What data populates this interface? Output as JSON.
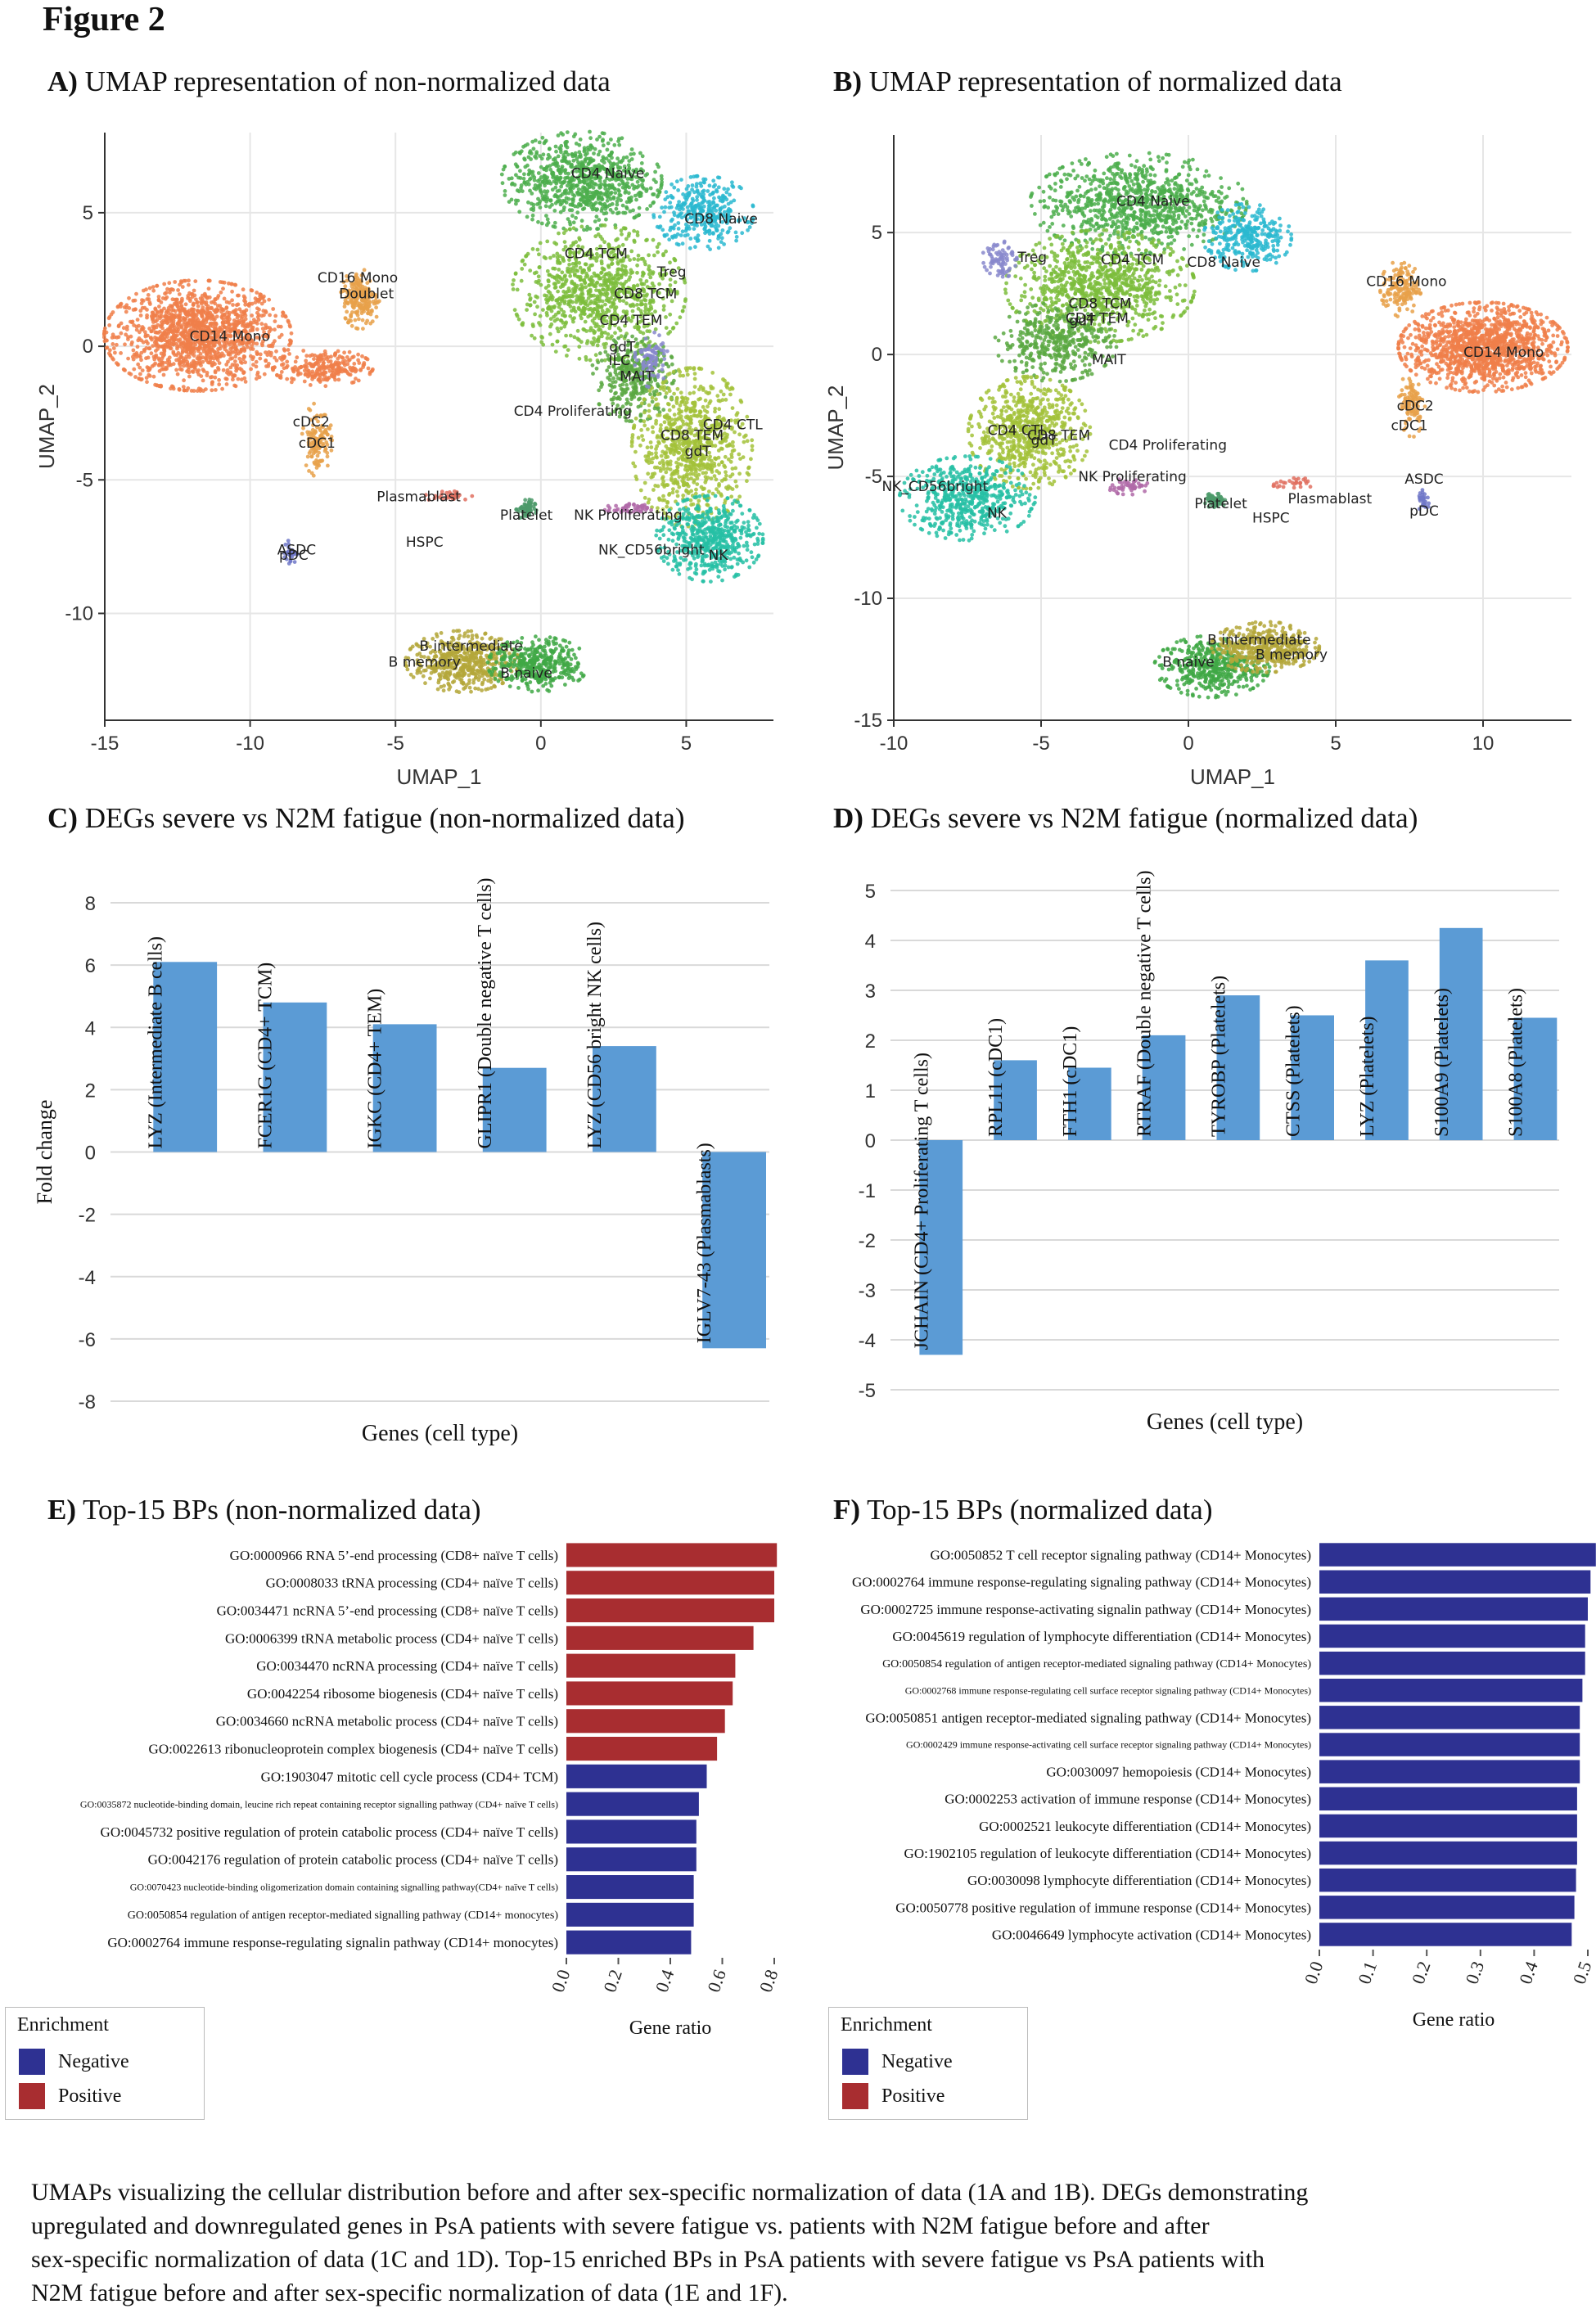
{
  "figure_title": "Figure 2",
  "colors": {
    "bar": "#5b9bd5",
    "negative": "#2e3192",
    "positive": "#a82d30",
    "grid": "#e6e6e6"
  },
  "caption": [
    "UMAPs visualizing the cellular distribution before and after sex-specific normalization of data (1A and 1B).  DEGs demonstrating",
    "upregulated and downregulated genes in PsA patients with severe fatigue vs. patients with N2M fatigue before and after",
    "sex-specific normalization of data (1C and 1D). Top-15 enriched BPs in PsA patients with severe fatigue vs PsA patients with",
    "N2M fatigue before and after sex-specific normalization of data (1E and 1F)."
  ],
  "chart_data": [
    {
      "id": "A",
      "type": "scatter",
      "panel_letter": "A)",
      "title": "UMAP representation of non-normalized data",
      "xlabel": "UMAP_1",
      "ylabel": "UMAP_2",
      "xlim": [
        -15,
        8
      ],
      "ylim": [
        -14,
        8
      ],
      "xticks": [
        -15,
        -10,
        -5,
        0,
        5
      ],
      "yticks": [
        -10,
        -5,
        0,
        5
      ],
      "clusters": [
        {
          "x": -11.8,
          "y": 0.4,
          "rx": 2.8,
          "ry": 1.8,
          "color": "#f07f4a",
          "count": 1400
        },
        {
          "x": -7.5,
          "y": -0.8,
          "rx": 1.5,
          "ry": 0.6,
          "color": "#f07f4a",
          "count": 250
        },
        {
          "x": -6.2,
          "y": 1.8,
          "rx": 0.6,
          "ry": 1.0,
          "color": "#e8a14a",
          "count": 200
        },
        {
          "x": -7.7,
          "y": -3.5,
          "rx": 0.45,
          "ry": 1.2,
          "color": "#e8a14a",
          "count": 120
        },
        {
          "x": 1.4,
          "y": 6.2,
          "rx": 2.4,
          "ry": 1.6,
          "color": "#4cae4c",
          "count": 800
        },
        {
          "x": 5.6,
          "y": 5.0,
          "rx": 1.5,
          "ry": 1.2,
          "color": "#2ab8d0",
          "count": 350
        },
        {
          "x": 2.0,
          "y": 2.0,
          "rx": 2.6,
          "ry": 2.2,
          "color": "#7cbd3c",
          "count": 900
        },
        {
          "x": 3.2,
          "y": -1.2,
          "rx": 1.3,
          "ry": 1.4,
          "color": "#5aa842",
          "count": 350
        },
        {
          "x": 5.2,
          "y": -3.8,
          "rx": 1.8,
          "ry": 2.6,
          "color": "#a3c23a",
          "count": 800
        },
        {
          "x": 5.8,
          "y": -7.2,
          "rx": 1.6,
          "ry": 1.4,
          "color": "#26bfa5",
          "count": 550
        },
        {
          "x": 3.8,
          "y": -0.5,
          "rx": 0.5,
          "ry": 0.9,
          "color": "#8888cc",
          "count": 80
        },
        {
          "x": -2.7,
          "y": -11.8,
          "rx": 1.7,
          "ry": 1.0,
          "color": "#b4a73a",
          "count": 500
        },
        {
          "x": -0.1,
          "y": -11.9,
          "rx": 1.5,
          "ry": 0.9,
          "color": "#3fa845",
          "count": 400
        },
        {
          "x": -0.5,
          "y": -6.1,
          "rx": 0.3,
          "ry": 0.35,
          "color": "#4c9a6a",
          "count": 60
        },
        {
          "x": 3.0,
          "y": -6.1,
          "rx": 0.7,
          "ry": 0.2,
          "color": "#b06aa8",
          "count": 50
        },
        {
          "x": -3.2,
          "y": -5.6,
          "rx": 0.8,
          "ry": 0.2,
          "color": "#e07060",
          "count": 30
        },
        {
          "x": -8.6,
          "y": -7.7,
          "rx": 0.2,
          "ry": 0.4,
          "color": "#7078c8",
          "count": 30
        }
      ],
      "labels": [
        {
          "text": "CD4 Naive",
          "x": 2.3,
          "y": 6.3
        },
        {
          "text": "CD8 Naive",
          "x": 6.2,
          "y": 4.6
        },
        {
          "text": "CD4 TCM",
          "x": 1.9,
          "y": 3.3
        },
        {
          "text": "Treg",
          "x": 4.5,
          "y": 2.6
        },
        {
          "text": "CD8 TCM",
          "x": 3.6,
          "y": 1.8
        },
        {
          "text": "CD4 TEM",
          "x": 3.1,
          "y": 0.8
        },
        {
          "text": "gdT",
          "x": 2.8,
          "y": -0.2
        },
        {
          "text": "ILC",
          "x": 2.7,
          "y": -0.7
        },
        {
          "text": "MAIT",
          "x": 3.3,
          "y": -1.3
        },
        {
          "text": "CD4 Proliferating",
          "x": 1.1,
          "y": -2.6
        },
        {
          "text": "CD4 CTL",
          "x": 6.6,
          "y": -3.1
        },
        {
          "text": "CD8 TEM",
          "x": 5.2,
          "y": -3.5
        },
        {
          "text": "gdT",
          "x": 5.4,
          "y": -4.1
        },
        {
          "text": "CD16 Mono",
          "x": -6.3,
          "y": 2.4
        },
        {
          "text": "Doublet",
          "x": -6.0,
          "y": 1.8
        },
        {
          "text": "CD14 Mono",
          "x": -10.7,
          "y": 0.2
        },
        {
          "text": "cDC2",
          "x": -7.9,
          "y": -3.0
        },
        {
          "text": "cDC1",
          "x": -7.7,
          "y": -3.8
        },
        {
          "text": "Plasmablast",
          "x": -4.2,
          "y": -5.8
        },
        {
          "text": "Platelet",
          "x": -0.5,
          "y": -6.5
        },
        {
          "text": "NK Proliferating",
          "x": 3.0,
          "y": -6.5
        },
        {
          "text": "HSPC",
          "x": -4.0,
          "y": -7.5
        },
        {
          "text": "ASDC",
          "x": -8.4,
          "y": -7.8
        },
        {
          "text": "pDC",
          "x": -8.5,
          "y": -8.0
        },
        {
          "text": "NK_CD56bright",
          "x": 3.8,
          "y": -7.8
        },
        {
          "text": "NK",
          "x": 6.1,
          "y": -8.0
        },
        {
          "text": "B intermediate",
          "x": -2.4,
          "y": -11.4
        },
        {
          "text": "B memory",
          "x": -4.0,
          "y": -12.0
        },
        {
          "text": "B naive",
          "x": -0.5,
          "y": -12.4
        }
      ]
    },
    {
      "id": "B",
      "type": "scatter",
      "panel_letter": "B)",
      "title": "UMAP representation of normalized data",
      "xlabel": "UMAP_1",
      "ylabel": "UMAP_2",
      "xlim": [
        -10,
        13
      ],
      "ylim": [
        -15,
        9
      ],
      "xticks": [
        -10,
        -5,
        0,
        5,
        10
      ],
      "yticks": [
        -15,
        -10,
        -5,
        0,
        5
      ],
      "clusters": [
        {
          "x": -1.7,
          "y": 6.2,
          "rx": 3.2,
          "ry": 1.8,
          "color": "#4cae4c",
          "count": 900
        },
        {
          "x": 2.0,
          "y": 4.8,
          "rx": 1.3,
          "ry": 1.2,
          "color": "#2ab8d0",
          "count": 300
        },
        {
          "x": -3.0,
          "y": 2.8,
          "rx": 2.8,
          "ry": 2.0,
          "color": "#7cbd3c",
          "count": 900
        },
        {
          "x": -4.5,
          "y": 0.5,
          "rx": 1.8,
          "ry": 1.4,
          "color": "#5aa842",
          "count": 400
        },
        {
          "x": -5.4,
          "y": -3.2,
          "rx": 1.8,
          "ry": 2.0,
          "color": "#a3c23a",
          "count": 700
        },
        {
          "x": -7.5,
          "y": -5.9,
          "rx": 2.0,
          "ry": 1.5,
          "color": "#26bfa5",
          "count": 550
        },
        {
          "x": -6.4,
          "y": 4.0,
          "rx": 0.5,
          "ry": 0.8,
          "color": "#8888cc",
          "count": 80
        },
        {
          "x": 10.0,
          "y": 0.3,
          "rx": 2.5,
          "ry": 1.6,
          "color": "#f07f4a",
          "count": 1300
        },
        {
          "x": 7.2,
          "y": 2.7,
          "rx": 0.6,
          "ry": 1.0,
          "color": "#e8a14a",
          "count": 150
        },
        {
          "x": 7.6,
          "y": -2.0,
          "rx": 0.4,
          "ry": 1.2,
          "color": "#e8a14a",
          "count": 100
        },
        {
          "x": 0.8,
          "y": -12.8,
          "rx": 1.7,
          "ry": 1.1,
          "color": "#3fa845",
          "count": 450
        },
        {
          "x": 2.6,
          "y": -12.0,
          "rx": 1.6,
          "ry": 0.9,
          "color": "#b4a73a",
          "count": 450
        },
        {
          "x": 0.9,
          "y": -6.0,
          "rx": 0.3,
          "ry": 0.3,
          "color": "#4c9a6a",
          "count": 60
        },
        {
          "x": -2.0,
          "y": -5.4,
          "rx": 0.7,
          "ry": 0.3,
          "color": "#b06aa8",
          "count": 50
        },
        {
          "x": 3.7,
          "y": -5.3,
          "rx": 0.8,
          "ry": 0.2,
          "color": "#e07060",
          "count": 30
        },
        {
          "x": 8.0,
          "y": -6.0,
          "rx": 0.2,
          "ry": 0.4,
          "color": "#7078c8",
          "count": 30
        }
      ],
      "labels": [
        {
          "text": "CD4 Naive",
          "x": -1.2,
          "y": 6.1
        },
        {
          "text": "Treg",
          "x": -5.3,
          "y": 3.8
        },
        {
          "text": "CD4 TCM",
          "x": -1.9,
          "y": 3.7
        },
        {
          "text": "CD8 Naive",
          "x": 1.2,
          "y": 3.6
        },
        {
          "text": "CD8 TCM",
          "x": -3.0,
          "y": 1.9
        },
        {
          "text": "CD4 TEM",
          "x": -3.1,
          "y": 1.3
        },
        {
          "text": "gdT",
          "x": -3.6,
          "y": 1.2
        },
        {
          "text": "MAIT",
          "x": -2.7,
          "y": -0.4
        },
        {
          "text": "CD4 CTL",
          "x": -5.8,
          "y": -3.3
        },
        {
          "text": "CD8 TEM",
          "x": -4.4,
          "y": -3.5
        },
        {
          "text": "gdT",
          "x": -4.9,
          "y": -3.7
        },
        {
          "text": "CD4 Proliferating",
          "x": -0.7,
          "y": -3.9
        },
        {
          "text": "NK Proliferating",
          "x": -1.9,
          "y": -5.2
        },
        {
          "text": "NK_CD56bright",
          "x": -8.6,
          "y": -5.6
        },
        {
          "text": "NK",
          "x": -6.5,
          "y": -6.7
        },
        {
          "text": "Platelet",
          "x": 1.1,
          "y": -6.3
        },
        {
          "text": "HSPC",
          "x": 2.8,
          "y": -6.9
        },
        {
          "text": "Plasmablast",
          "x": 4.8,
          "y": -6.1
        },
        {
          "text": "CD16 Mono",
          "x": 7.4,
          "y": 2.8
        },
        {
          "text": "CD14 Mono",
          "x": 10.7,
          "y": -0.1
        },
        {
          "text": "cDC2",
          "x": 7.7,
          "y": -2.3
        },
        {
          "text": "cDC1",
          "x": 7.5,
          "y": -3.1
        },
        {
          "text": "ASDC",
          "x": 8.0,
          "y": -5.3
        },
        {
          "text": "pDC",
          "x": 8.0,
          "y": -6.6
        },
        {
          "text": "B intermediate",
          "x": 2.4,
          "y": -11.9
        },
        {
          "text": "B memory",
          "x": 3.5,
          "y": -12.5
        },
        {
          "text": "B naive",
          "x": 0.0,
          "y": -12.8
        }
      ]
    },
    {
      "id": "C",
      "type": "bar",
      "panel_letter": "C)",
      "title": "DEGs severe vs N2M fatigue (non-normalized data)",
      "xlabel": "Genes (cell type)",
      "ylabel": "Fold change",
      "ylim": [
        -8,
        8
      ],
      "yticks": [
        8,
        6,
        4,
        2,
        0,
        -2,
        -4,
        -6,
        -8
      ],
      "categories": [
        "LYZ (Intermediate B cells)",
        "FCER1G (CD4+ TCM)",
        "IGKC (CD4+ TEM)",
        "GLIPR1 (Double negative T cells)",
        "LYZ (CD56 bright NK cells)",
        "IGLV7-43 (Plasmablasts)"
      ],
      "values": [
        6.1,
        4.8,
        4.1,
        2.7,
        3.4,
        -6.3
      ]
    },
    {
      "id": "D",
      "type": "bar",
      "panel_letter": "D)",
      "title": "DEGs severe vs N2M fatigue (normalized data)",
      "xlabel": "Genes (cell type)",
      "ylabel": "",
      "ylim": [
        -5,
        5
      ],
      "yticks": [
        5,
        4,
        3,
        2,
        1,
        0,
        -1,
        -2,
        -3,
        -4,
        -5
      ],
      "categories": [
        "JCHAIN (CD4+ Proliferating T cells)",
        "RPL11 (cDC1)",
        "FTH1 (cDC1)",
        "RTRAF (Double negative T cells)",
        "TYROBP (Platelets)",
        "CTSS (Platelets)",
        "LYZ (Platelets)",
        "S100A9 (Platelets)",
        "S100A8 (Platelets)"
      ],
      "values": [
        -4.3,
        1.6,
        1.45,
        2.1,
        2.9,
        2.5,
        3.6,
        4.25,
        2.45
      ]
    },
    {
      "id": "E",
      "type": "bar",
      "orientation": "horizontal",
      "panel_letter": "E)",
      "title": "Top-15 BPs (non-normalized data)",
      "xlabel": "Gene ratio",
      "xlim": [
        0,
        0.8
      ],
      "xticks": [
        "0.0",
        "0.2",
        "0.4",
        "0.6",
        "0.8"
      ],
      "legend_title": "Enrichment",
      "legend": [
        "Negative",
        "Positive"
      ],
      "categories": [
        "GO:0000966 RNA 5’-end processing (CD8+ naïve T cells)",
        "GO:0008033 tRNA processing (CD4+ naïve T cells)",
        "GO:0034471 ncRNA 5’-end processing (CD8+ naïve T cells)",
        "GO:0006399 tRNA metabolic process (CD4+ naïve T cells)",
        "GO:0034470 ncRNA processing (CD4+ naïve T cells)",
        "GO:0042254 ribosome biogenesis (CD4+ naïve T cells)",
        "GO:0034660 ncRNA metabolic process (CD4+ naïve T cells)",
        "GO:0022613 ribonucleoprotein complex biogenesis (CD4+ naïve T cells)",
        "GO:1903047 mitotic cell cycle process (CD4+ TCM)",
        "GO:0035872 nucleotide-binding domain, leucine rich repeat containing receptor signalling pathway (CD4+ naïve T cells)",
        "GO:0045732 positive regulation of protein catabolic process (CD4+ naïve T cells)",
        "GO:0042176 regulation of protein catabolic process (CD4+ naïve T cells)",
        "GO:0070423 nucleotide-binding oligomerization domain containing signalling pathway(CD4+ naïve T cells)",
        "GO:0050854 regulation of antigen receptor-mediated signalling pathway (CD14+ monocytes)",
        "GO:0002764 immune response-regulating signalin pathway (CD14+ monocytes)"
      ],
      "values": [
        0.81,
        0.8,
        0.8,
        0.72,
        0.65,
        0.64,
        0.61,
        0.58,
        0.54,
        0.51,
        0.5,
        0.5,
        0.49,
        0.49,
        0.48
      ],
      "enrichment": [
        "Positive",
        "Positive",
        "Positive",
        "Positive",
        "Positive",
        "Positive",
        "Positive",
        "Positive",
        "Negative",
        "Negative",
        "Negative",
        "Negative",
        "Negative",
        "Negative",
        "Negative"
      ]
    },
    {
      "id": "F",
      "type": "bar",
      "orientation": "horizontal",
      "panel_letter": "F)",
      "title": "Top-15 BPs (normalized data)",
      "xlabel": "Gene ratio",
      "xlim": [
        0,
        0.5
      ],
      "xticks": [
        "0.0",
        "0.1",
        "0.2",
        "0.3",
        "0.4",
        "0.5"
      ],
      "legend_title": "Enrichment",
      "legend": [
        "Negative",
        "Positive"
      ],
      "categories": [
        "GO:0050852 T cell receptor signaling pathway (CD14+ Monocytes)",
        "GO:0002764 immune response-regulating signaling pathway (CD14+ Monocytes)",
        "GO:0002725 immune response-activating signalin pathway (CD14+ Monocytes)",
        "GO:0045619 regulation of lymphocyte differentiation (CD14+ Monocytes)",
        "GO:0050854 regulation of antigen receptor-mediated signaling pathway (CD14+ Monocytes)",
        "GO:0002768 immune response-regulating cell surface receptor signaling pathway (CD14+ Monocytes)",
        "GO:0050851 antigen receptor-mediated signaling pathway (CD14+ Monocytes)",
        "GO:0002429 immune response-activating cell surface receptor signaling pathway (CD14+ Monocytes)",
        "GO:0030097 hemopoiesis (CD14+ Monocytes)",
        "GO:0002253 activation of immune response (CD14+ Monocytes)",
        "GO:0002521 leukocyte differentiation (CD14+ Monocytes)",
        "GO:1902105 regulation of leukocyte differentiation (CD14+ Monocytes)",
        "GO:0030098 lymphocyte differentiation (CD14+ Monocytes)",
        "GO:0050778 positive regulation of immune response (CD14+ Monocytes)",
        "GO:0046649 lymphocyte activation (CD14+ Monocytes)"
      ],
      "values": [
        0.515,
        0.505,
        0.5,
        0.495,
        0.495,
        0.49,
        0.485,
        0.485,
        0.485,
        0.48,
        0.48,
        0.48,
        0.478,
        0.475,
        0.47
      ],
      "enrichment": [
        "Negative",
        "Negative",
        "Negative",
        "Negative",
        "Negative",
        "Negative",
        "Negative",
        "Negative",
        "Negative",
        "Negative",
        "Negative",
        "Negative",
        "Negative",
        "Negative",
        "Negative"
      ]
    }
  ]
}
